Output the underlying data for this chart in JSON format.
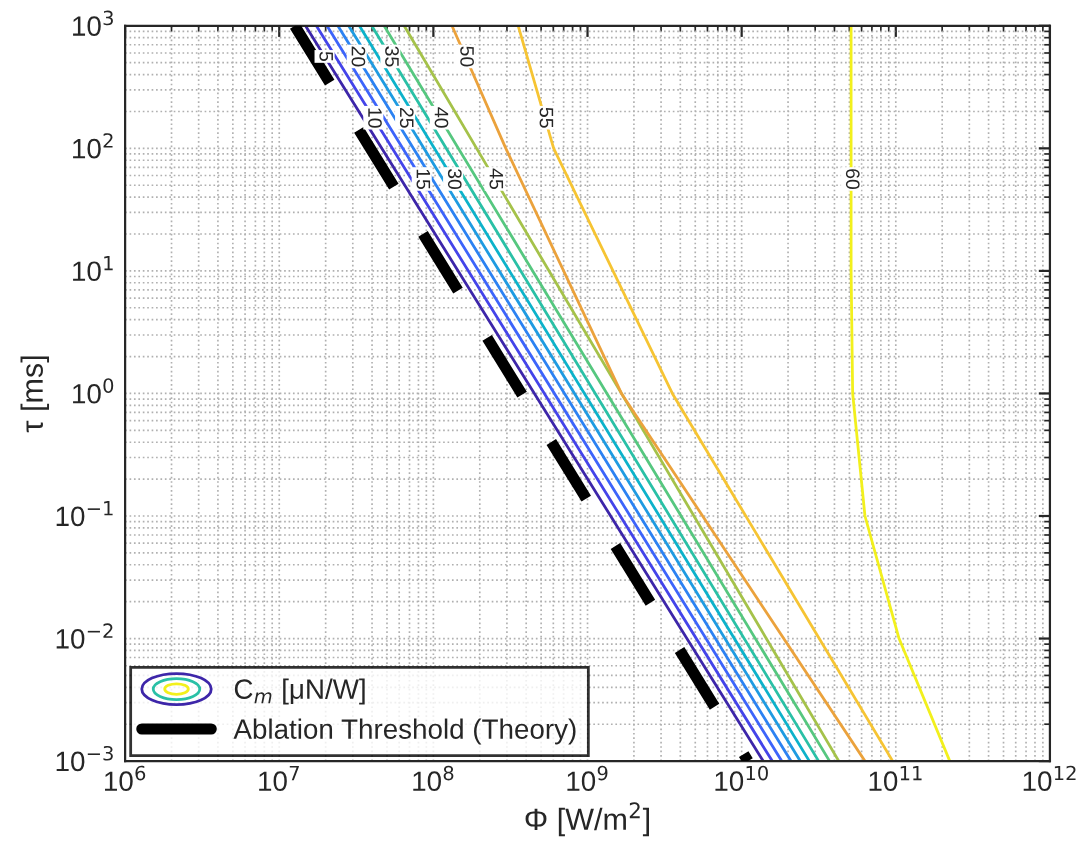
{
  "chart_data": {
    "type": "line",
    "xlabel": "Φ [W/m$^{2}$]",
    "ylabel": "τ [ms]",
    "legend_title": "C$_{m}$ [μN/W]",
    "log": "xy",
    "grid": true,
    "legend": "bottom left",
    "xlim": [
      1000000,
      1000000000000
    ],
    "ylim": [
      0.001,
      1000
    ],
    "xticks": [
      {
        "value": 1000000,
        "label": "10$^{6}$"
      },
      {
        "value": 10000000,
        "label": "10$^{7}$"
      },
      {
        "value": 100000000,
        "label": "10$^{8}$"
      },
      {
        "value": 1000000000,
        "label": "10$^{9}$"
      },
      {
        "value": 10000000000,
        "label": "10$^{10}$"
      },
      {
        "value": 100000000000,
        "label": "10$^{11}$"
      },
      {
        "value": 1000000000000,
        "label": "10$^{12}$"
      }
    ],
    "yticks": [
      {
        "value": 0.001,
        "label": "10$^{−3}$"
      },
      {
        "value": 0.01,
        "label": "10$^{−2}$"
      },
      {
        "value": 0.1,
        "label": "10$^{−1}$"
      },
      {
        "value": 1,
        "label": "10$^{0}$"
      },
      {
        "value": 10,
        "label": "10$^{1}$"
      },
      {
        "value": 100,
        "label": "10$^{2}$"
      },
      {
        "value": 1000,
        "label": "10$^{3}$"
      }
    ],
    "series": [
      {
        "name": "5",
        "color": "#3d26a9",
        "x": [
          14800000,
          13800000000
        ],
        "values": [
          1000,
          0.001
        ]
      },
      {
        "name": "10",
        "color": "#4444e9",
        "x": [
          17400000,
          15800000000
        ],
        "values": [
          1000,
          0.001
        ]
      },
      {
        "name": "15",
        "color": "#3d64fa",
        "x": [
          20400000,
          18200000000
        ],
        "values": [
          1000,
          0.001
        ]
      },
      {
        "name": "20",
        "color": "#2c82f2",
        "x": [
          24000000,
          20900000000
        ],
        "values": [
          1000,
          0.001
        ]
      },
      {
        "name": "25",
        "color": "#1f9be1",
        "x": [
          28200000,
          24000000000
        ],
        "values": [
          1000,
          0.001
        ]
      },
      {
        "name": "30",
        "color": "#0db2ca",
        "x": [
          33100000,
          27500000000
        ],
        "values": [
          1000,
          0.001
        ]
      },
      {
        "name": "35",
        "color": "#2ac0a6",
        "x": [
          39800000,
          31600000000
        ],
        "values": [
          1000,
          0.001
        ]
      },
      {
        "name": "40",
        "color": "#56c77f",
        "x": [
          47900000,
          37200000000
        ],
        "values": [
          1000,
          0.001
        ]
      },
      {
        "name": "45",
        "color": "#a5c24a",
        "x": [
          64600000,
          42700000000
        ],
        "values": [
          1000,
          0.001
        ]
      },
      {
        "name": "50",
        "color": "#eba23c",
        "x": [
          132000000,
          295000000,
          1660000000,
          63100000000
        ],
        "values": [
          1000,
          100,
          1,
          0.001
        ]
      },
      {
        "name": "55",
        "color": "#f6c433",
        "x": [
          355000000,
          603000000,
          3550000000,
          95500000000
        ],
        "values": [
          1000,
          100,
          1,
          0.001
        ]
      },
      {
        "name": "60",
        "color": "#f2f01c",
        "x": [
          51300000000,
          51300000000,
          52500000000,
          63100000000,
          105000000000,
          224000000000
        ],
        "values": [
          1000,
          10,
          1,
          0.1,
          0.01,
          0.001
        ]
      },
      {
        "name": "Ablation Threshold (Theory)",
        "color": "#000000",
        "line_style": "dashed",
        "x": [
          12600000,
          11000000000
        ],
        "values": [
          1000,
          0.001
        ]
      }
    ]
  }
}
